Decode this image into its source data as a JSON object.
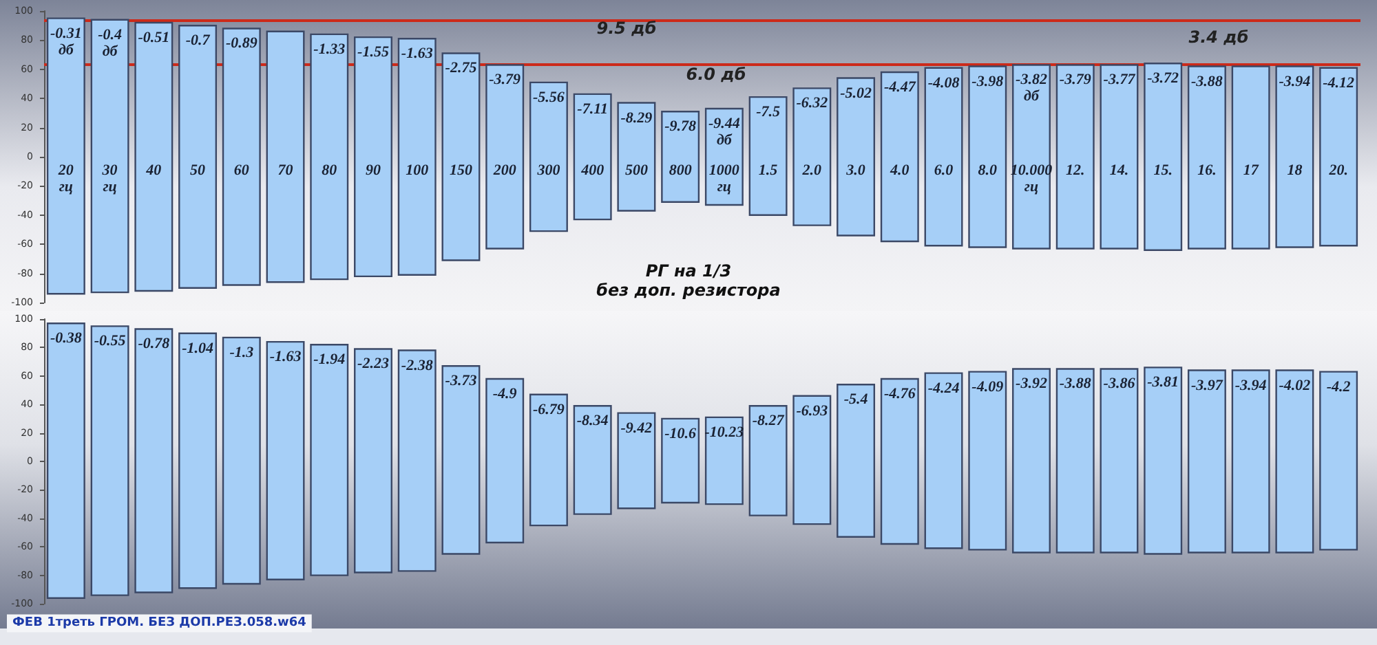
{
  "chart_data": [
    {
      "type": "bar",
      "title": "РГ на 1/3",
      "subtitle": "без доп. резистора",
      "categories": [
        "20 гц",
        "30 гц",
        "40",
        "50",
        "60",
        "70",
        "80",
        "90",
        "100",
        "150",
        "200",
        "300",
        "400",
        "500",
        "800",
        "1000 гц",
        "1.5",
        "2.0",
        "3.0",
        "4.0",
        "6.0",
        "8.0",
        "10.000 гц",
        "12.",
        "14.",
        "15.",
        "16.",
        "17",
        "18",
        "20."
      ],
      "base": [
        -94,
        -93,
        -92,
        -90,
        -88,
        -86,
        -84,
        -82,
        -81,
        -71,
        -63,
        -51,
        -43,
        -37,
        -31,
        -33,
        -40,
        -47,
        -54,
        -58,
        -61,
        -62,
        -63,
        -63,
        -63,
        -64,
        -63,
        -63,
        -62,
        -61
      ],
      "values": [
        189,
        187,
        184,
        180,
        176,
        172,
        168,
        164,
        162,
        142,
        126,
        102,
        86,
        74,
        62,
        66,
        81,
        94,
        108,
        116,
        122,
        124,
        126,
        126,
        126,
        128,
        125,
        125,
        124,
        122
      ],
      "color": "#a6cff7",
      "ylim": [
        -100,
        100
      ],
      "yticks": [
        -100,
        -80,
        -60,
        -40,
        -20,
        0,
        20,
        40,
        60,
        80,
        100
      ],
      "ref_lines": [
        {
          "axis": "y",
          "value": 94,
          "color": "#cc2a1a"
        },
        {
          "axis": "y",
          "value": 63,
          "color": "#cc2a1a"
        }
      ],
      "annotations": [
        "9.5 дб",
        "6.0 дб",
        "3.4 дб",
        {
          "text": "-0.31 дб",
          "x": "20 гц",
          "y": 95
        },
        {
          "text": "-0.4 дб",
          "x": "30 гц",
          "y": 94
        },
        {
          "text": "-0.51",
          "x": "40",
          "y": 92
        },
        {
          "text": "-0.7",
          "x": "50",
          "y": 90
        },
        {
          "text": "-0.89",
          "x": "60",
          "y": 88
        },
        {
          "text": "-1.33",
          "x": "80",
          "y": 84
        },
        {
          "text": "-1.55",
          "x": "90",
          "y": 82
        },
        {
          "text": "-1.63",
          "x": "100",
          "y": 81
        },
        {
          "text": "-2.75",
          "x": "150",
          "y": 71
        },
        {
          "text": "-3.79",
          "x": "200",
          "y": 63
        },
        {
          "text": "-5.56",
          "x": "300",
          "y": 51
        },
        {
          "text": "-7.11",
          "x": "400",
          "y": 43
        },
        {
          "text": "-8.29",
          "x": "500",
          "y": 37
        },
        {
          "text": "-9.78",
          "x": "800",
          "y": 31
        },
        {
          "text": "-9.44 дб",
          "x": "1000 гц",
          "y": 33
        },
        {
          "text": "-7.5",
          "x": "1.5",
          "y": 41
        },
        {
          "text": "-6.32",
          "x": "2.0",
          "y": 47
        },
        {
          "text": "-5.02",
          "x": "3.0",
          "y": 54
        },
        {
          "text": "-4.47",
          "x": "4.0",
          "y": 58
        },
        {
          "text": "-4.08",
          "x": "6.0",
          "y": 61
        },
        {
          "text": "-3.98",
          "x": "8.0",
          "y": 62
        },
        {
          "text": "-3.82 дб",
          "x": "10.000 гц",
          "y": 63
        },
        {
          "text": "-3.79",
          "x": "12.",
          "y": 63
        },
        {
          "text": "-3.77",
          "x": "14.",
          "y": 63
        },
        {
          "text": "-3.72",
          "x": "15.",
          "y": 64
        },
        {
          "text": "-3.88",
          "x": "16.",
          "y": 62
        },
        {
          "text": "-3.94",
          "x": "18",
          "y": 62
        },
        {
          "text": "-4.12",
          "x": "20.",
          "y": 61
        }
      ]
    },
    {
      "type": "bar",
      "categories": [
        "20 гц",
        "30 гц",
        "40",
        "50",
        "60",
        "70",
        "80",
        "90",
        "100",
        "150",
        "200",
        "300",
        "400",
        "500",
        "800",
        "1000 гц",
        "1.5",
        "2.0",
        "3.0",
        "4.0",
        "6.0",
        "8.0",
        "10.000 гц",
        "12.",
        "14.",
        "15.",
        "16.",
        "17",
        "18",
        "20."
      ],
      "base": [
        -96,
        -94,
        -92,
        -89,
        -86,
        -83,
        -80,
        -78,
        -77,
        -65,
        -57,
        -45,
        -37,
        -33,
        -29,
        -30,
        -38,
        -44,
        -53,
        -58,
        -61,
        -62,
        -64,
        -64,
        -64,
        -65,
        -64,
        -64,
        -64,
        -62
      ],
      "values": [
        193,
        189,
        185,
        179,
        173,
        167,
        162,
        157,
        155,
        132,
        115,
        92,
        76,
        67,
        59,
        61,
        77,
        90,
        107,
        116,
        123,
        125,
        129,
        129,
        129,
        131,
        128,
        128,
        128,
        125
      ],
      "color": "#a6cff7",
      "ylim": [
        -100,
        100
      ],
      "yticks": [
        -100,
        -80,
        -60,
        -40,
        -20,
        0,
        20,
        40,
        60,
        80,
        100
      ],
      "tick_labels": "y",
      "annotations": [
        "ФЕВ 1треть ГРОМ. БЕЗ ДОП.РЕЗ.058.w64",
        {
          "text": "-0.38",
          "x": "20 гц",
          "y": 97
        },
        {
          "text": "-0.55",
          "x": "30 гц",
          "y": 95
        },
        {
          "text": "-0.78",
          "x": "40",
          "y": 93
        },
        {
          "text": "-1.04",
          "x": "50",
          "y": 90
        },
        {
          "text": "-1.3",
          "x": "60",
          "y": 87
        },
        {
          "text": "-1.63",
          "x": "70",
          "y": 84
        },
        {
          "text": "-1.94",
          "x": "80",
          "y": 82
        },
        {
          "text": "-2.23",
          "x": "90",
          "y": 79
        },
        {
          "text": "-2.38",
          "x": "100",
          "y": 78
        },
        {
          "text": "-3.73",
          "x": "150",
          "y": 67
        },
        {
          "text": "-4.9",
          "x": "200",
          "y": 58
        },
        {
          "text": "-6.79",
          "x": "300",
          "y": 47
        },
        {
          "text": "-8.34",
          "x": "400",
          "y": 39
        },
        {
          "text": "-9.42",
          "x": "500",
          "y": 34
        },
        {
          "text": "-10.6",
          "x": "800",
          "y": 30
        },
        {
          "text": "-10.23",
          "x": "1000 гц",
          "y": 31
        },
        {
          "text": "-8.27",
          "x": "1.5",
          "y": 39
        },
        {
          "text": "-6.93",
          "x": "2.0",
          "y": 46
        },
        {
          "text": "-5.4",
          "x": "3.0",
          "y": 54
        },
        {
          "text": "-4.76",
          "x": "4.0",
          "y": 58
        },
        {
          "text": "-4.24",
          "x": "6.0",
          "y": 62
        },
        {
          "text": "-4.09",
          "x": "8.0",
          "y": 63
        },
        {
          "text": "-3.92",
          "x": "10.000 гц",
          "y": 65
        },
        {
          "text": "-3.88",
          "x": "12.",
          "y": 65
        },
        {
          "text": "-3.86",
          "x": "14.",
          "y": 65
        },
        {
          "text": "-3.81",
          "x": "15.",
          "y": 66
        },
        {
          "text": "-3.97",
          "x": "16.",
          "y": 64
        },
        {
          "text": "-3.94",
          "x": "17",
          "y": 64
        },
        {
          "text": "-4.02",
          "x": "18",
          "y": 64
        },
        {
          "text": "-4.2",
          "x": "20.",
          "y": 63
        }
      ]
    }
  ]
}
